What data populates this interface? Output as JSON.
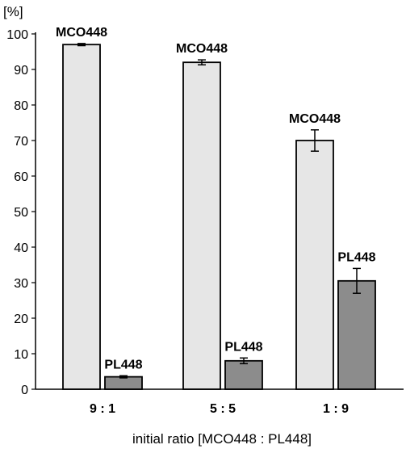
{
  "chart_data": {
    "type": "bar",
    "categories": [
      "9 : 1",
      "5 : 5",
      "1 : 9"
    ],
    "series": [
      {
        "name": "MCO448",
        "values": [
          97,
          92,
          70
        ],
        "errors": [
          0.3,
          0.7,
          3.0
        ],
        "color": "#e6e6e6"
      },
      {
        "name": "PL448",
        "values": [
          3.5,
          8,
          30.5
        ],
        "errors": [
          0.3,
          0.8,
          3.5
        ],
        "color": "#8c8c8c"
      }
    ],
    "ylabel": "[%]",
    "xlabel": "initial ratio [MCO448 : PL448]",
    "ylim": [
      0,
      100
    ],
    "yticks": [
      0,
      10,
      20,
      30,
      40,
      50,
      60,
      70,
      80,
      90,
      100
    ],
    "grid": false
  }
}
